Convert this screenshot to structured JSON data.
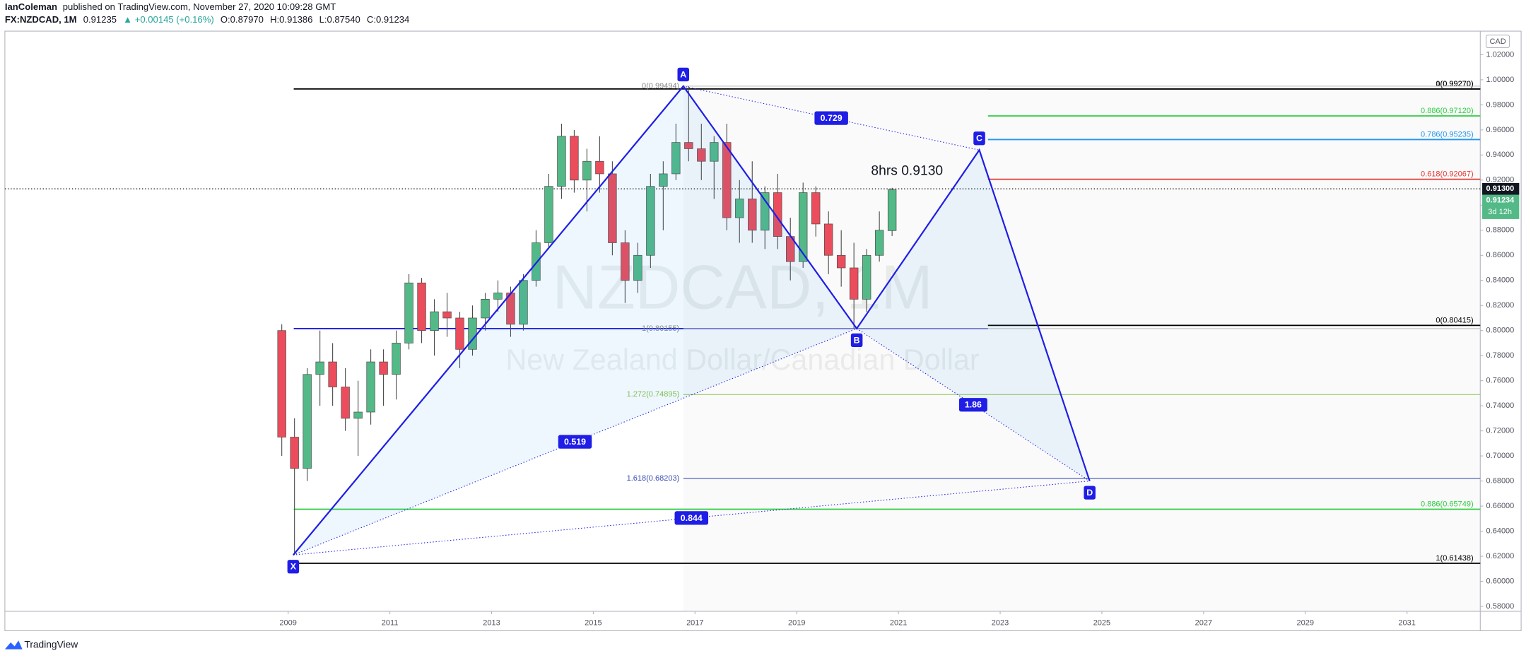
{
  "header": {
    "author": "IanColeman",
    "published": "published on TradingView.com, November 27, 2020 10:09:28 GMT",
    "symbol": "FX:NZDCAD, 1M",
    "last": "0.91235",
    "change": "▲ +0.00145 (+0.16%)",
    "ohlc": [
      "O:0.87970",
      "H:0.91386",
      "L:0.87540",
      "C:0.91234"
    ]
  },
  "chart_data": {
    "type": "candlestick",
    "watermark": "NZDCAD, 1M",
    "watermark_sub": "New Zealand Dollar/Canadian Dollar",
    "currency": "CAD",
    "up_color": "#53b987",
    "down_color": "#eb4d5c",
    "x": [
      2008.75,
      2009.0,
      2009.25,
      2009.5,
      2009.75,
      2010.0,
      2010.25,
      2010.5,
      2010.75,
      2011.0,
      2011.25,
      2011.5,
      2011.75,
      2012.0,
      2012.25,
      2012.5,
      2012.75,
      2013.0,
      2013.25,
      2013.5,
      2013.75,
      2014.0,
      2014.25,
      2014.5,
      2014.75,
      2015.0,
      2015.25,
      2015.5,
      2015.75,
      2016.0,
      2016.25,
      2016.5,
      2016.75,
      2017.0,
      2017.25,
      2017.5,
      2017.75,
      2018.0,
      2018.25,
      2018.5,
      2018.75,
      2019.0,
      2019.25,
      2019.5,
      2019.75,
      2020.0,
      2020.25,
      2020.5,
      2020.75
    ],
    "open": [
      0.8,
      0.715,
      0.69,
      0.765,
      0.775,
      0.755,
      0.73,
      0.735,
      0.775,
      0.765,
      0.79,
      0.838,
      0.8,
      0.815,
      0.81,
      0.785,
      0.81,
      0.825,
      0.83,
      0.805,
      0.84,
      0.87,
      0.915,
      0.955,
      0.92,
      0.935,
      0.925,
      0.87,
      0.84,
      0.86,
      0.915,
      0.925,
      0.95,
      0.945,
      0.935,
      0.95,
      0.89,
      0.905,
      0.88,
      0.91,
      0.875,
      0.855,
      0.91,
      0.885,
      0.86,
      0.85,
      0.825,
      0.86,
      0.8797
    ],
    "high": [
      0.805,
      0.73,
      0.77,
      0.8,
      0.79,
      0.77,
      0.76,
      0.785,
      0.785,
      0.8,
      0.845,
      0.842,
      0.825,
      0.83,
      0.815,
      0.82,
      0.83,
      0.84,
      0.835,
      0.845,
      0.88,
      0.925,
      0.965,
      0.96,
      0.945,
      0.955,
      0.935,
      0.88,
      0.87,
      0.925,
      0.935,
      0.965,
      0.9949,
      0.965,
      0.955,
      0.965,
      0.92,
      0.935,
      0.915,
      0.925,
      0.89,
      0.918,
      0.915,
      0.895,
      0.88,
      0.87,
      0.865,
      0.895,
      0.91386
    ],
    "low": [
      0.7,
      0.621,
      0.68,
      0.74,
      0.74,
      0.72,
      0.7,
      0.725,
      0.74,
      0.745,
      0.785,
      0.79,
      0.78,
      0.795,
      0.77,
      0.78,
      0.8,
      0.815,
      0.795,
      0.8,
      0.835,
      0.865,
      0.905,
      0.91,
      0.895,
      0.91,
      0.86,
      0.822,
      0.83,
      0.85,
      0.88,
      0.92,
      0.935,
      0.92,
      0.905,
      0.88,
      0.87,
      0.87,
      0.865,
      0.865,
      0.84,
      0.85,
      0.875,
      0.845,
      0.835,
      0.8016,
      0.815,
      0.855,
      0.8754
    ],
    "close": [
      0.715,
      0.69,
      0.765,
      0.775,
      0.755,
      0.73,
      0.735,
      0.775,
      0.765,
      0.79,
      0.838,
      0.8,
      0.815,
      0.81,
      0.785,
      0.81,
      0.825,
      0.83,
      0.805,
      0.84,
      0.87,
      0.915,
      0.955,
      0.92,
      0.935,
      0.925,
      0.87,
      0.84,
      0.86,
      0.915,
      0.925,
      0.95,
      0.945,
      0.935,
      0.95,
      0.89,
      0.905,
      0.88,
      0.91,
      0.875,
      0.855,
      0.91,
      0.885,
      0.86,
      0.85,
      0.825,
      0.86,
      0.88,
      0.91234
    ],
    "xlim": [
      2003.43,
      2032.44
    ],
    "ylim": [
      0.5761,
      1.0388
    ],
    "xticks": [
      2009,
      2011,
      2013,
      2015,
      2017,
      2019,
      2021,
      2023,
      2025,
      2027,
      2029,
      2031
    ],
    "yticks": [
      {
        "value": 0.58,
        "label": "0.58000"
      },
      {
        "value": 0.6,
        "label": "0.60000"
      },
      {
        "value": 0.62,
        "label": "0.62000"
      },
      {
        "value": 0.64,
        "label": "0.64000"
      },
      {
        "value": 0.66,
        "label": "0.66000"
      },
      {
        "value": 0.68,
        "label": "0.68000"
      },
      {
        "value": 0.7,
        "label": "0.70000"
      },
      {
        "value": 0.72,
        "label": "0.72000"
      },
      {
        "value": 0.74,
        "label": "0.74000"
      },
      {
        "value": 0.76,
        "label": "0.76000"
      },
      {
        "value": 0.78,
        "label": "0.78000"
      },
      {
        "value": 0.8,
        "label": "0.80000"
      },
      {
        "value": 0.82,
        "label": "0.82000"
      },
      {
        "value": 0.84,
        "label": "0.84000"
      },
      {
        "value": 0.86,
        "label": "0.86000"
      },
      {
        "value": 0.88,
        "label": "0.88000"
      },
      {
        "value": 0.9,
        "label": "0.90000"
      },
      {
        "value": 0.92,
        "label": "0.92000"
      },
      {
        "value": 0.94,
        "label": "0.94000"
      },
      {
        "value": 0.96,
        "label": "0.96000"
      },
      {
        "value": 0.98,
        "label": "0.98000"
      },
      {
        "value": 1.0,
        "label": "1.00000"
      },
      {
        "value": 1.02,
        "label": "1.02000"
      }
    ],
    "price_line": {
      "value": 0.913,
      "label": "0.91300"
    },
    "last_price": {
      "value": 0.91234,
      "label": "0.91234"
    },
    "countdown": "3d 12h",
    "annotation": "8hrs 0.9130",
    "pattern": {
      "color": "#1e1ee6",
      "points": [
        {
          "label": "X",
          "x": 2009.1,
          "y": 0.621
        },
        {
          "label": "A",
          "x": 2016.77,
          "y": 0.9949
        },
        {
          "label": "B",
          "x": 2020.18,
          "y": 0.8016
        },
        {
          "label": "C",
          "x": 2022.59,
          "y": 0.944
        },
        {
          "label": "D",
          "x": 2024.76,
          "y": 0.68
        }
      ],
      "ratios": [
        {
          "label": "0.519",
          "from": "X",
          "to": "B"
        },
        {
          "label": "0.729",
          "from": "A",
          "to": "C"
        },
        {
          "label": "1.86",
          "from": "B",
          "to": "D"
        },
        {
          "label": "0.844",
          "from": "X",
          "to": "D"
        }
      ]
    },
    "levels": [
      {
        "value": 0.9927,
        "from": 2009.11,
        "to": 2032.44,
        "color": "#000000",
        "label": "0(0.99270)",
        "side": "right"
      },
      {
        "value": 0.9927,
        "from": 2022.76,
        "to": 2032.44,
        "color": "#000000",
        "label": "1(0.99270)",
        "side": "right"
      },
      {
        "value": 0.9712,
        "from": 2022.76,
        "to": 2032.44,
        "color": "#2ecc40",
        "label": "0.886(0.97120)",
        "side": "right"
      },
      {
        "value": 0.95235,
        "from": 2022.76,
        "to": 2032.44,
        "color": "#2196f3",
        "label": "0.786(0.95235)",
        "side": "right"
      },
      {
        "value": 0.92067,
        "from": 2022.76,
        "to": 2032.44,
        "color": "#e53935",
        "label": "0.618(0.92067)",
        "side": "right"
      },
      {
        "value": 0.80415,
        "from": 2022.76,
        "to": 2032.44,
        "color": "#000000",
        "label": "0(0.80415)",
        "side": "right"
      },
      {
        "value": 0.80155,
        "from": 2009.11,
        "to": 2022.76,
        "color": "#1e1ee6"
      },
      {
        "value": 0.99494,
        "from": 2016.77,
        "to": 2032.44,
        "color": "#bdbdbd",
        "label": "0(0.99494)",
        "side": "left"
      },
      {
        "value": 0.80155,
        "from": 2016.77,
        "to": 2032.44,
        "color": "#bdbdbd",
        "label": "1(0.80155)",
        "side": "left"
      },
      {
        "value": 0.74895,
        "from": 2016.77,
        "to": 2032.44,
        "color": "#8bc34a",
        "label": "1.272(0.74895)",
        "side": "left"
      },
      {
        "value": 0.68203,
        "from": 2016.77,
        "to": 2032.44,
        "color": "#3f51b5",
        "label": "1.618(0.68203)",
        "side": "left"
      },
      {
        "value": 0.65749,
        "from": 2009.11,
        "to": 2032.44,
        "color": "#2ecc40",
        "label": "0.886(0.65749)",
        "side": "right"
      },
      {
        "value": 0.61438,
        "from": 2009.11,
        "to": 2032.44,
        "color": "#000000",
        "label": "1(0.61438)",
        "side": "right"
      }
    ]
  },
  "footer": "TradingView"
}
